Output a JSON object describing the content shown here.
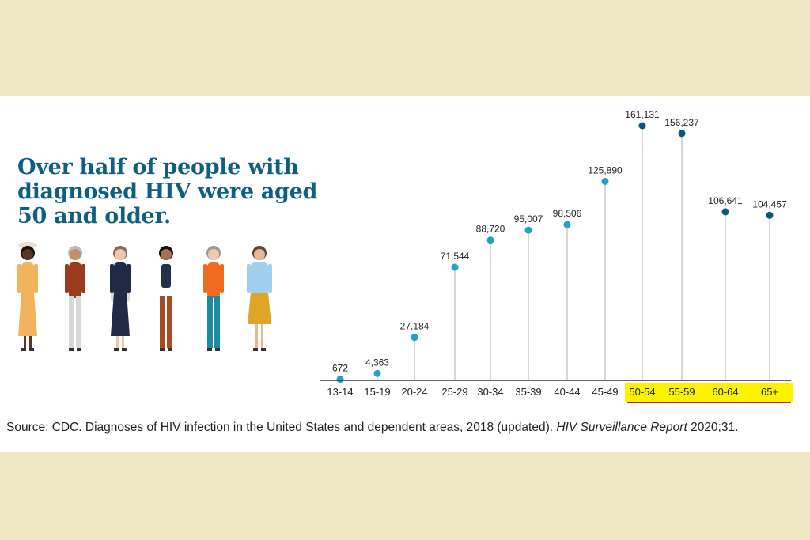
{
  "title": "Over half of people with diagnosed HIV were aged 50 and older.",
  "source": {
    "prefix": "Source: CDC. Diagnoses of HIV infection in the United States and dependent areas, 2018 (updated). ",
    "italic": "HIV Surveillance Report",
    "suffix": " 2020;31."
  },
  "colors": {
    "background": "#ede7c6",
    "title": "#0f5f82",
    "dot_under_50": "#20a4bf",
    "dot_50_plus": "#0e5677",
    "highlight": "#fff200",
    "underline": "#d0202a"
  },
  "chart_data": {
    "type": "lollipop",
    "categories": [
      "13-14",
      "15-19",
      "20-24",
      "25-29",
      "30-34",
      "35-39",
      "40-44",
      "45-49",
      "50-54",
      "55-59",
      "60-64",
      "65+"
    ],
    "values": [
      672,
      4363,
      27184,
      71544,
      88720,
      95007,
      98506,
      125890,
      161131,
      156237,
      106641,
      104457
    ],
    "value_labels": [
      "672",
      "4,363",
      "27,184",
      "71,544",
      "88,720",
      "95,007",
      "98,506",
      "125,890",
      "161,131",
      "156,237",
      "106,641",
      "104,457"
    ],
    "highlighted_categories": [
      "50-54",
      "55-59",
      "60-64",
      "65+"
    ],
    "xlabel": "",
    "ylabel": "",
    "grid": false
  }
}
